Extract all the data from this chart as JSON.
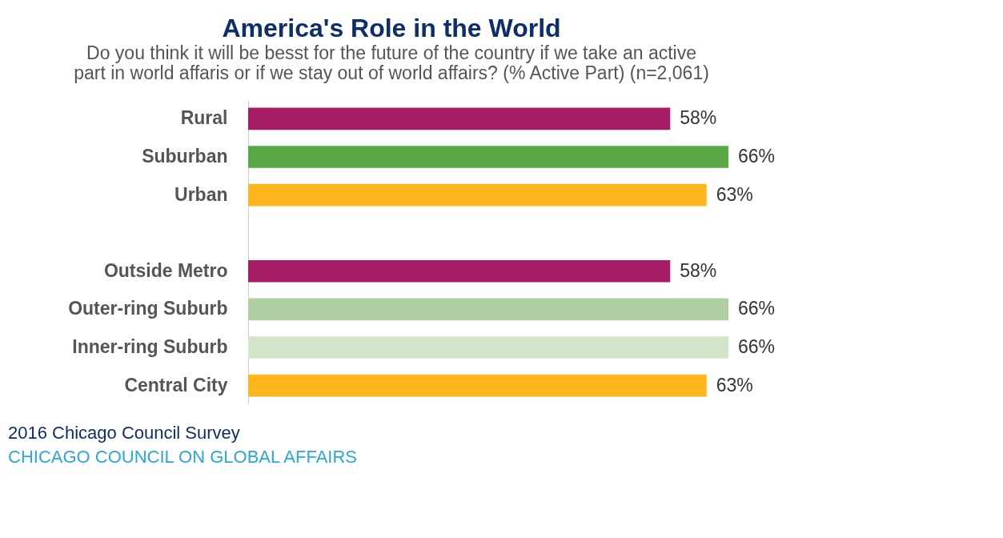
{
  "chart_data": {
    "type": "bar",
    "orientation": "horizontal",
    "title": "America's Role in the World",
    "subtitle": [
      "Do you think it will be besst for the future of the country if we take an active",
      "part in world affaris or if we stay out of world affairs? (% Active Part) (n=2,061)"
    ],
    "categories": [
      "Rural",
      "Suburban",
      "Urban",
      null,
      "Outside Metro",
      "Outer-ring Suburb",
      "Inner-ring Suburb",
      "Central City"
    ],
    "values": [
      58,
      66,
      63,
      null,
      58,
      66,
      66,
      63
    ],
    "value_labels": [
      "58%",
      "66%",
      "63%",
      null,
      "58%",
      "66%",
      "66%",
      "63%"
    ],
    "colors": [
      "#a51e65",
      "#59a845",
      "#fdb71c",
      null,
      "#a51e65",
      "#aecf9f",
      "#d3e5c9",
      "#fdb71c"
    ],
    "annotations": [
      "2016 Chicago Council Survey",
      "CHICAGO COUNCIL ON GLOBAL AFFAIRS"
    ],
    "grid": false
  }
}
